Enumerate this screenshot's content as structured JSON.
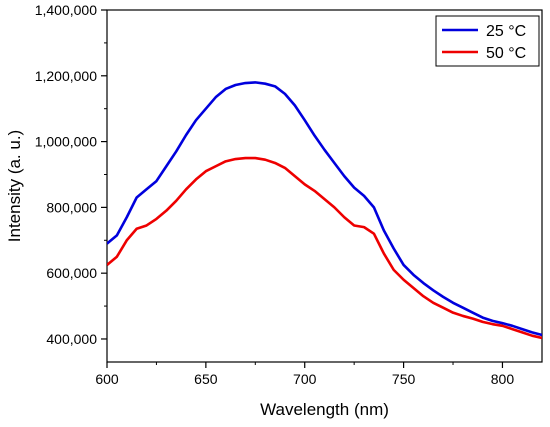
{
  "chart_data": {
    "type": "line",
    "title": "",
    "xlabel": "Wavelength (nm)",
    "ylabel": "Intensity (a. u.)",
    "xlim": [
      600,
      820
    ],
    "ylim": [
      330000,
      1400000
    ],
    "x_ticks": [
      600,
      650,
      700,
      750,
      800
    ],
    "x_tick_labels": [
      "600",
      "650",
      "700",
      "750",
      "800"
    ],
    "y_ticks": [
      400000,
      600000,
      800000,
      1000000,
      1200000,
      1400000
    ],
    "y_tick_labels": [
      "400,000",
      "600,000",
      "800,000",
      "1,000,000",
      "1,200,000",
      "1,400,000"
    ],
    "grid": false,
    "legend_position": "top-right",
    "series": [
      {
        "name": "25 °C",
        "color": "#0000dd",
        "x": [
          600,
          605,
          610,
          615,
          620,
          625,
          630,
          635,
          640,
          645,
          650,
          655,
          660,
          665,
          670,
          675,
          680,
          685,
          690,
          695,
          700,
          705,
          710,
          715,
          720,
          725,
          730,
          735,
          740,
          745,
          750,
          755,
          760,
          765,
          770,
          775,
          780,
          785,
          790,
          795,
          800,
          805,
          810,
          815,
          820
        ],
        "values": [
          690000,
          715000,
          770000,
          830000,
          855000,
          880000,
          925000,
          970000,
          1020000,
          1065000,
          1100000,
          1135000,
          1160000,
          1172000,
          1178000,
          1180000,
          1176000,
          1168000,
          1145000,
          1110000,
          1065000,
          1018000,
          975000,
          935000,
          895000,
          860000,
          835000,
          800000,
          730000,
          675000,
          625000,
          595000,
          570000,
          548000,
          528000,
          510000,
          495000,
          480000,
          465000,
          455000,
          448000,
          440000,
          430000,
          420000,
          412000
        ]
      },
      {
        "name": "50 °C",
        "color": "#ee0000",
        "x": [
          600,
          605,
          610,
          615,
          620,
          625,
          630,
          635,
          640,
          645,
          650,
          655,
          660,
          665,
          670,
          675,
          680,
          685,
          690,
          695,
          700,
          705,
          710,
          715,
          720,
          725,
          730,
          735,
          740,
          745,
          750,
          755,
          760,
          765,
          770,
          775,
          780,
          785,
          790,
          795,
          800,
          805,
          810,
          815,
          820
        ],
        "values": [
          625000,
          650000,
          700000,
          735000,
          745000,
          765000,
          790000,
          820000,
          855000,
          885000,
          910000,
          925000,
          940000,
          947000,
          950000,
          950000,
          945000,
          935000,
          920000,
          895000,
          870000,
          850000,
          825000,
          800000,
          770000,
          745000,
          740000,
          720000,
          660000,
          610000,
          580000,
          555000,
          530000,
          510000,
          495000,
          480000,
          470000,
          462000,
          452000,
          445000,
          440000,
          430000,
          420000,
          410000,
          403000
        ]
      }
    ]
  }
}
